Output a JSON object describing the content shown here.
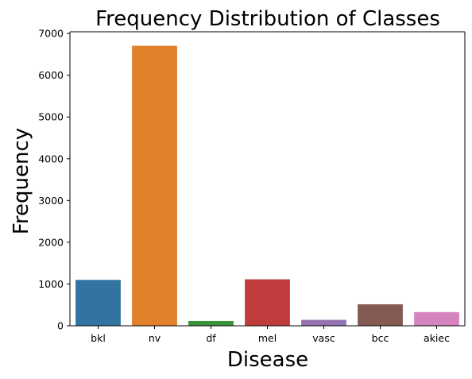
{
  "chart_data": {
    "type": "bar",
    "title": "Frequency Distribution of Classes",
    "xlabel": "Disease",
    "ylabel": "Frequency",
    "categories": [
      "bkl",
      "nv",
      "df",
      "mel",
      "vasc",
      "bcc",
      "akiec"
    ],
    "values": [
      1099,
      6705,
      115,
      1113,
      142,
      514,
      327
    ],
    "colors": [
      "#3274a1",
      "#e1812c",
      "#3a923a",
      "#c03d3e",
      "#9372b2",
      "#845b53",
      "#d684bd"
    ],
    "yticks": [
      0,
      1000,
      2000,
      3000,
      4000,
      5000,
      6000,
      7000
    ],
    "ylim": [
      0,
      7040
    ],
    "grid": false,
    "legend": "none"
  }
}
